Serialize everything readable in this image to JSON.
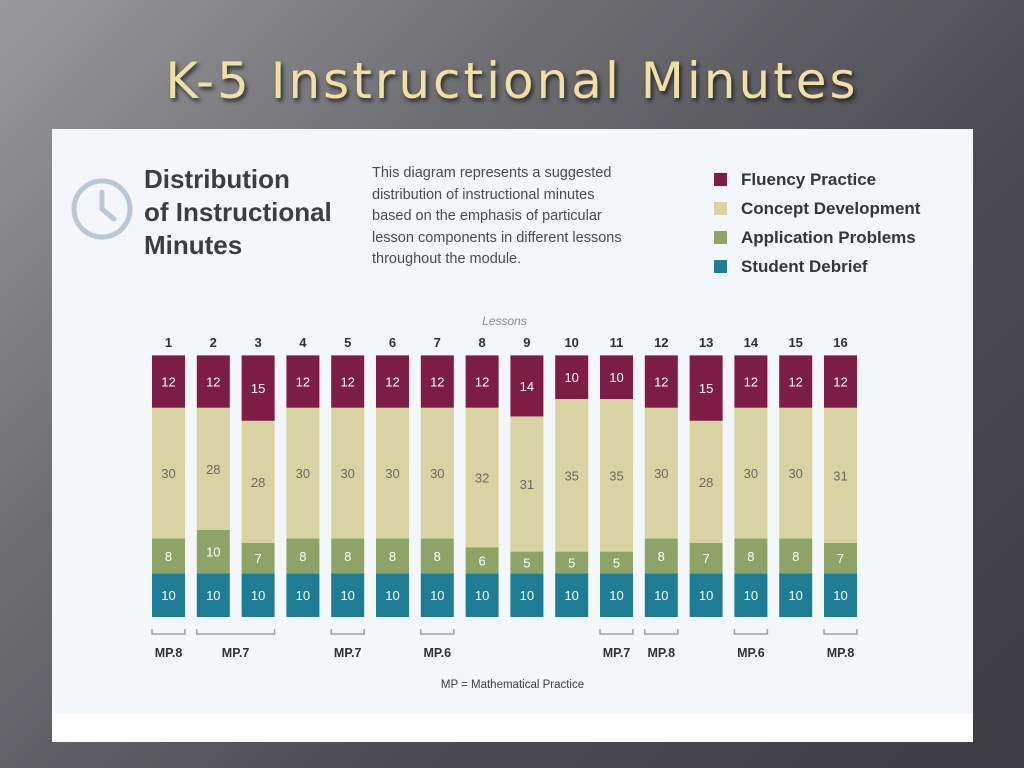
{
  "slide": {
    "title": "K-5 Instructional Minutes"
  },
  "panel": {
    "title_lines": [
      "Distribution",
      "of Instructional",
      "Minutes"
    ],
    "description_lines": [
      "This diagram represents a suggested",
      "distribution of instructional minutes",
      "based on the emphasis of particular",
      "lesson components in different lessons",
      "throughout the module."
    ],
    "icon": "clock-icon",
    "footnote": "MP = Mathematical Practice"
  },
  "chart_data": {
    "type": "bar",
    "stacked": true,
    "title": "Lessons",
    "categories": [
      "1",
      "2",
      "3",
      "4",
      "5",
      "6",
      "7",
      "8",
      "9",
      "10",
      "11",
      "12",
      "13",
      "14",
      "15",
      "16"
    ],
    "series": [
      {
        "name": "Fluency Practice",
        "color": "#7d1c45",
        "values": [
          12,
          12,
          15,
          12,
          12,
          12,
          12,
          12,
          14,
          10,
          10,
          12,
          15,
          12,
          12,
          12
        ]
      },
      {
        "name": "Concept Development",
        "color": "#d7d3a3",
        "values": [
          30,
          28,
          28,
          30,
          30,
          30,
          30,
          32,
          31,
          35,
          35,
          30,
          28,
          30,
          30,
          31
        ]
      },
      {
        "name": "Application Problems",
        "color": "#8ea466",
        "values": [
          8,
          10,
          7,
          8,
          8,
          8,
          8,
          6,
          5,
          5,
          5,
          8,
          7,
          8,
          8,
          7
        ]
      },
      {
        "name": "Student Debrief",
        "color": "#1f7c96",
        "values": [
          10,
          10,
          10,
          10,
          10,
          10,
          10,
          10,
          10,
          10,
          10,
          10,
          10,
          10,
          10,
          10
        ]
      }
    ],
    "mp_labels": [
      {
        "label": "MP.8",
        "lessons": [
          1
        ]
      },
      {
        "label": "MP.7",
        "lessons": [
          2,
          3
        ]
      },
      {
        "label": "MP.7",
        "lessons": [
          5
        ]
      },
      {
        "label": "MP.6",
        "lessons": [
          7
        ]
      },
      {
        "label": "MP.7",
        "lessons": [
          11
        ]
      },
      {
        "label": "MP.8",
        "lessons": [
          12
        ]
      },
      {
        "label": "MP.6",
        "lessons": [
          14
        ]
      },
      {
        "label": "MP.8",
        "lessons": [
          16
        ]
      }
    ]
  }
}
